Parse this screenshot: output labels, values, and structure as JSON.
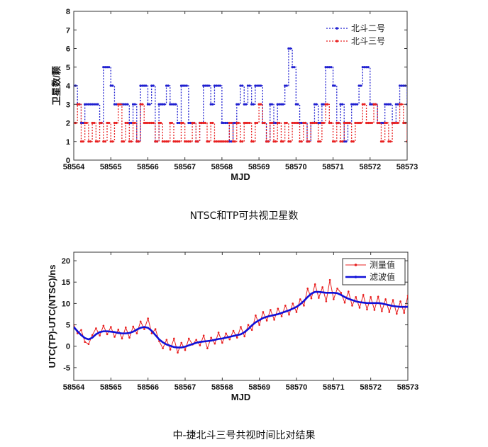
{
  "chart_data": [
    {
      "type": "line",
      "title": "",
      "caption": "NTSC和TP可共视卫星数",
      "xlabel": "MJD",
      "ylabel": "卫星数/颗",
      "xlim": [
        58564,
        58573
      ],
      "ylim": [
        0,
        8
      ],
      "xticks": [
        "58564",
        "58565",
        "58566",
        "58567",
        "58568",
        "58569",
        "58570",
        "58571",
        "58572",
        "58573"
      ],
      "yticks": [
        "0",
        "1",
        "2",
        "3",
        "4",
        "5",
        "6",
        "7",
        "8"
      ],
      "x_start": 58564,
      "x_step": 0.1,
      "grid": false,
      "legend_position": "top-right",
      "series": [
        {
          "name": "北斗二号",
          "color": "#1f1fd0",
          "style": "dotted step with dot markers",
          "values": [
            4,
            3,
            2,
            3,
            3,
            3,
            3,
            2,
            5,
            5,
            4,
            3,
            3,
            3,
            3,
            2,
            3,
            1,
            4,
            4,
            3,
            4,
            1,
            3,
            3,
            4,
            3,
            3,
            2,
            4,
            4,
            2,
            2,
            1,
            2,
            4,
            4,
            3,
            4,
            4,
            2,
            2,
            1,
            2,
            3,
            4,
            3,
            4,
            3,
            4,
            4,
            2,
            1,
            3,
            2,
            3,
            3,
            4,
            6,
            5,
            3,
            2,
            2,
            1,
            2,
            3,
            2,
            3,
            5,
            5,
            4,
            2,
            3,
            1,
            2,
            3,
            3,
            4,
            5,
            5,
            3,
            3,
            2,
            2,
            3,
            3,
            2,
            3,
            4,
            4,
            3
          ]
        },
        {
          "name": "北斗三号",
          "color": "#e82020",
          "style": "dotted step with dot markers",
          "values": [
            2,
            3,
            1,
            2,
            1,
            2,
            1,
            2,
            1,
            2,
            1,
            2,
            3,
            1,
            2,
            1,
            2,
            1,
            3,
            2,
            2,
            2,
            1,
            2,
            1,
            1,
            2,
            1,
            1,
            2,
            1,
            1,
            2,
            1,
            2,
            2,
            1,
            2,
            1,
            1,
            1,
            1,
            2,
            1,
            2,
            1,
            2,
            2,
            1,
            2,
            3,
            2,
            1,
            2,
            1,
            2,
            1,
            2,
            1,
            2,
            2,
            1,
            2,
            1,
            2,
            2,
            1,
            2,
            3,
            2,
            1,
            2,
            1,
            2,
            2,
            1,
            2,
            2,
            3,
            2,
            2,
            3,
            2,
            1,
            2,
            1,
            2,
            2,
            3,
            2,
            1
          ]
        }
      ]
    },
    {
      "type": "line",
      "title": "",
      "caption": "中-捷北斗三号共视时间比对结果",
      "xlabel": "MJD",
      "ylabel": "UTC(TP)-UTC(NTSC)/ns",
      "xlim": [
        58564,
        58573
      ],
      "ylim": [
        -8,
        22
      ],
      "xticks": [
        "58564",
        "58565",
        "58566",
        "58567",
        "58568",
        "58569",
        "58570",
        "58571",
        "58572",
        "58573"
      ],
      "yticks": [
        "-5",
        "0",
        "5",
        "10",
        "15",
        "20"
      ],
      "x_start": 58564,
      "x_step": 0.1,
      "grid": false,
      "legend_position": "top-right",
      "series": [
        {
          "name": "测量值",
          "color": "#e82020",
          "style": "thin line with dot markers",
          "values": [
            5.0,
            3.0,
            3.8,
            1.0,
            0.5,
            2.6,
            4.2,
            2.5,
            4.8,
            2.8,
            4.5,
            2.2,
            3.9,
            1.8,
            4.4,
            2.0,
            4.6,
            3.0,
            5.8,
            4.0,
            6.5,
            3.0,
            4.0,
            1.2,
            -0.5,
            1.5,
            -0.8,
            1.8,
            -1.5,
            0.8,
            -0.9,
            1.8,
            0.4,
            1.5,
            0.2,
            2.5,
            -0.5,
            2.0,
            0.6,
            3.2,
            0.8,
            3.0,
            1.6,
            3.6,
            2.0,
            4.5,
            2.3,
            5.0,
            3.8,
            7.2,
            5.0,
            8.0,
            6.0,
            8.5,
            6.2,
            8.8,
            7.0,
            9.5,
            7.4,
            10.0,
            8.0,
            11.0,
            9.5,
            13.5,
            11.2,
            14.5,
            11.3,
            13.8,
            10.5,
            15.5,
            11.0,
            13.5,
            12.5,
            10.2,
            12.8,
            9.5,
            11.5,
            9.0,
            12.0,
            8.6,
            11.5,
            8.5,
            11.6,
            8.2,
            11.0,
            8.0,
            10.8,
            7.6,
            10.5,
            7.8,
            11.8
          ]
        },
        {
          "name": "滤波值",
          "color": "#1010d8",
          "style": "thick line",
          "values": [
            4.5,
            3.5,
            2.6,
            1.9,
            1.6,
            2.0,
            2.8,
            3.3,
            3.5,
            3.5,
            3.4,
            3.3,
            3.1,
            3.0,
            3.0,
            3.1,
            3.4,
            3.9,
            4.3,
            4.5,
            4.3,
            3.6,
            2.6,
            1.6,
            0.9,
            0.4,
            0.1,
            -0.2,
            -0.3,
            -0.3,
            -0.1,
            0.2,
            0.5,
            0.8,
            1.0,
            1.1,
            1.2,
            1.3,
            1.5,
            1.7,
            1.8,
            2.0,
            2.2,
            2.4,
            2.6,
            2.8,
            3.3,
            4.0,
            4.9,
            5.6,
            6.1,
            6.6,
            6.9,
            7.1,
            7.3,
            7.5,
            7.8,
            8.1,
            8.4,
            8.8,
            9.2,
            9.8,
            10.6,
            11.5,
            12.3,
            12.7,
            12.7,
            12.6,
            12.5,
            12.5,
            12.5,
            12.4,
            12.0,
            11.5,
            11.1,
            10.8,
            10.5,
            10.3,
            10.2,
            10.1,
            10.1,
            10.1,
            10.1,
            10.0,
            9.8,
            9.6,
            9.4,
            9.3,
            9.2,
            9.2,
            9.2
          ]
        }
      ]
    }
  ]
}
